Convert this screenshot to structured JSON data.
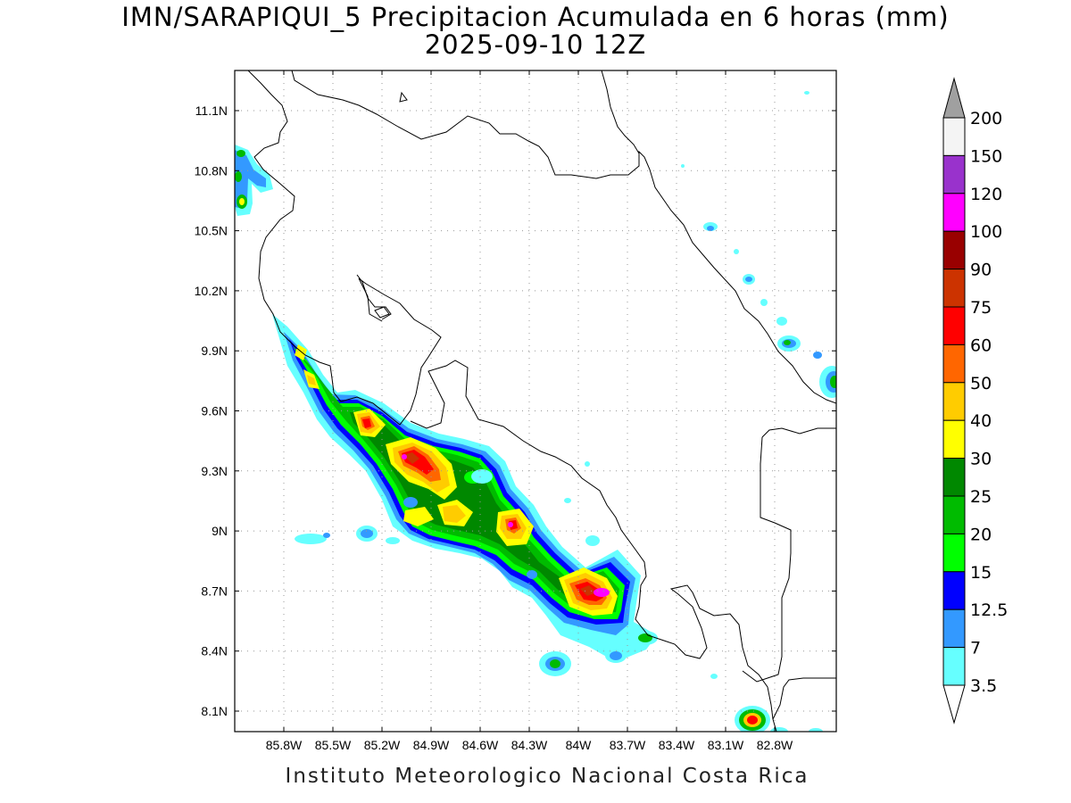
{
  "title": {
    "line1": "IMN/SARAPIQUI_5 Precipitacion Acumulada en 6 horas (mm)",
    "line2": "2025-09-10 12Z"
  },
  "credit": "Instituto Meteorologico Nacional Costa Rica",
  "axes": {
    "lat_labels": [
      "11.1N",
      "10.8N",
      "10.5N",
      "10.2N",
      "9.9N",
      "9.6N",
      "9.3N",
      "9N",
      "8.7N",
      "8.4N",
      "8.1N"
    ],
    "lon_labels": [
      "85.8W",
      "85.5W",
      "85.2W",
      "84.9W",
      "84.6W",
      "84.3W",
      "84W",
      "83.7W",
      "83.4W",
      "83.1W",
      "82.8W"
    ]
  },
  "colorbar": {
    "labels": [
      "200",
      "150",
      "120",
      "100",
      "90",
      "75",
      "60",
      "50",
      "40",
      "30",
      "25",
      "20",
      "15",
      "12.5",
      "7",
      "3.5"
    ],
    "colors": [
      "#f4f4f4",
      "#9932cc",
      "#ff00ff",
      "#990000",
      "#cc3300",
      "#ff0000",
      "#ff6600",
      "#ffcc00",
      "#ffff00",
      "#008800",
      "#00bb00",
      "#00ff00",
      "#0000ff",
      "#3399ff",
      "#66ffff"
    ],
    "top_color": "#a0a0a0"
  },
  "palette": {
    "cyan": "#66ffff",
    "lightblue": "#3399ff",
    "blue": "#0000ff",
    "lime": "#00ff00",
    "green": "#00bb00",
    "darkgreen": "#008800",
    "yellow": "#ffff00",
    "gold": "#ffcc00",
    "orange": "#ff6600",
    "red": "#ff0000",
    "darkred": "#cc3300",
    "maroon": "#990000",
    "magenta": "#ff00ff"
  }
}
